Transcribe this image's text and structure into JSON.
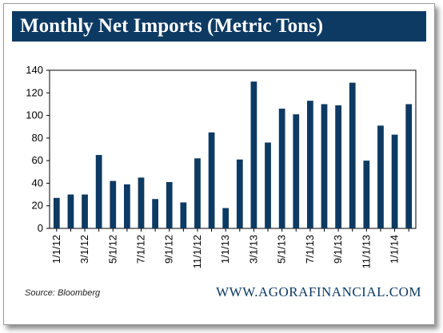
{
  "header": {
    "title": "Monthly Net Imports (Metric Tons)"
  },
  "footer": {
    "source": "Source: Bloomberg",
    "site": "WWW.AGORAFINANCIAL.COM"
  },
  "colors": {
    "header_bg": "#0d3a63",
    "bar": "#0d3a63",
    "site_text": "#0d3a63"
  },
  "chart_data": {
    "type": "bar",
    "title": "Monthly Net Imports (Metric Tons)",
    "xlabel": "",
    "ylabel": "",
    "ylim": [
      0,
      140
    ],
    "yticks": [
      0,
      20,
      40,
      60,
      80,
      100,
      120,
      140
    ],
    "grid": false,
    "legend": "none",
    "categories": [
      "1/1/12",
      "2/1/12",
      "3/1/12",
      "4/1/12",
      "5/1/12",
      "6/1/12",
      "7/1/12",
      "8/1/12",
      "9/1/12",
      "10/1/12",
      "11/1/12",
      "12/1/12",
      "1/1/13",
      "2/1/13",
      "3/1/13",
      "4/1/13",
      "5/1/13",
      "6/1/13",
      "7/1/13",
      "8/1/13",
      "9/1/13",
      "10/1/13",
      "11/1/13",
      "12/1/13",
      "1/1/14",
      "2/1/14"
    ],
    "tick_labels": [
      "1/1/12",
      "",
      "3/1/12",
      "",
      "5/1/12",
      "",
      "7/1/12",
      "",
      "9/1/12",
      "",
      "11/1/12",
      "",
      "1/1/13",
      "",
      "3/1/13",
      "",
      "5/1/13",
      "",
      "7/1/13",
      "",
      "9/1/13",
      "",
      "11/1/13",
      "",
      "1/1/14",
      ""
    ],
    "values": [
      27,
      30,
      30,
      65,
      42,
      39,
      45,
      26,
      41,
      23,
      62,
      85,
      18,
      61,
      130,
      76,
      106,
      101,
      113,
      110,
      109,
      129,
      60,
      91,
      83,
      110
    ]
  }
}
